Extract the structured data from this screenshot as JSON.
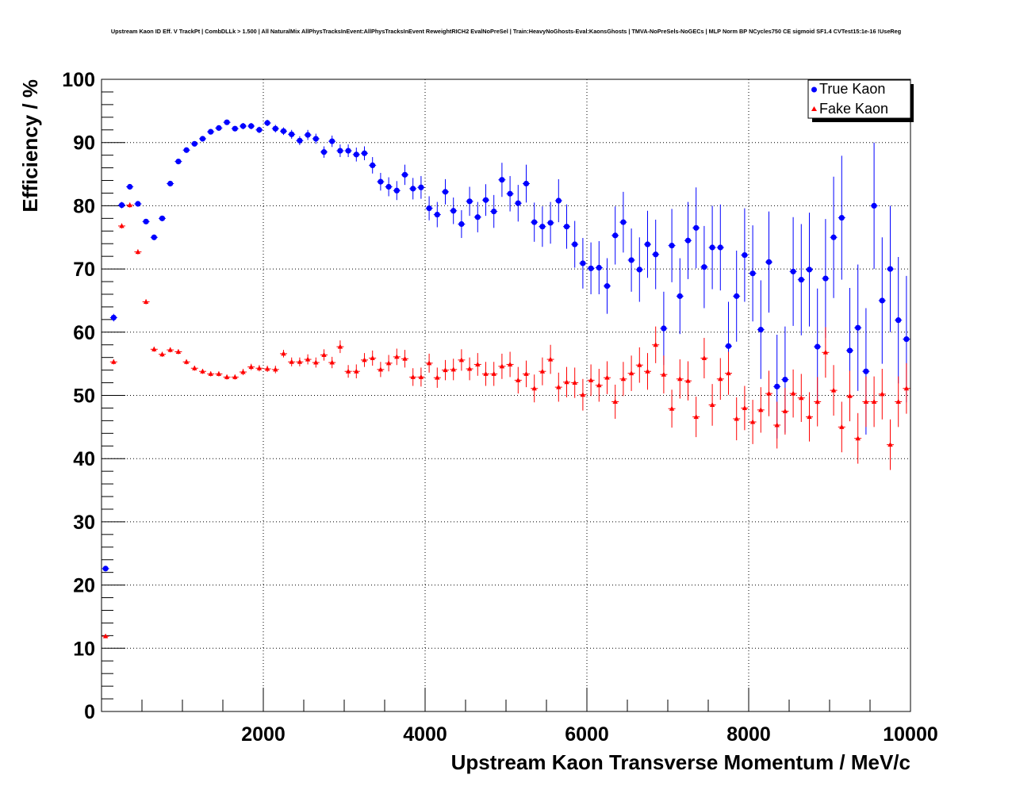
{
  "chart_data": {
    "type": "scatter",
    "title": "Upstream Kaon ID Eff. V TrackPt | CombDLLk > 1.500 | All NaturalMix AllPhysTracksInEvent:AllPhysTracksInEvent ReweightRICH2 EvalNoPreSel | Train:HeavyNoGhosts-Eval:KaonsGhosts | TMVA-NoPreSels-NoGECs | MLP Norm BP NCycles750 CE sigmoid SF1.4 CVTest15:1e-16 !UseReg",
    "xlabel": "Upstream Kaon Transverse Momentum / MeV/c",
    "ylabel": "Efficiency / %",
    "xlim": [
      0,
      10000
    ],
    "ylim": [
      0,
      100
    ],
    "x_ticks": [
      "2000",
      "4000",
      "6000",
      "8000",
      "10000"
    ],
    "y_ticks": [
      "0",
      "10",
      "20",
      "30",
      "40",
      "50",
      "60",
      "70",
      "80",
      "90",
      "100"
    ],
    "grid": true,
    "legend_position": "top-right",
    "series": [
      {
        "name": "True Kaon",
        "color": "#0000ff",
        "marker": "circle",
        "x": [
          50,
          150,
          250,
          350,
          450,
          550,
          650,
          750,
          850,
          950,
          1050,
          1150,
          1250,
          1350,
          1450,
          1550,
          1650,
          1750,
          1850,
          1950,
          2050,
          2150,
          2250,
          2350,
          2450,
          2550,
          2650,
          2750,
          2850,
          2950,
          3050,
          3150,
          3250,
          3350,
          3450,
          3550,
          3650,
          3750,
          3850,
          3950,
          4050,
          4150,
          4250,
          4350,
          4450,
          4550,
          4650,
          4750,
          4850,
          4950,
          5050,
          5150,
          5250,
          5350,
          5450,
          5550,
          5650,
          5750,
          5850,
          5950,
          6050,
          6150,
          6250,
          6350,
          6450,
          6550,
          6650,
          6750,
          6850,
          6950,
          7050,
          7150,
          7250,
          7350,
          7450,
          7550,
          7650,
          7750,
          7850,
          7950,
          8050,
          8150,
          8250,
          8350,
          8450,
          8550,
          8650,
          8750,
          8850,
          8950,
          9050,
          9150,
          9250,
          9350,
          9450,
          9550,
          9650,
          9750,
          9850,
          9950
        ],
        "y": [
          22.6,
          62.3,
          80.1,
          83.0,
          80.3,
          77.5,
          75.0,
          78.0,
          83.5,
          87.0,
          88.8,
          89.8,
          90.6,
          91.7,
          92.3,
          93.2,
          92.2,
          92.6,
          92.6,
          92.0,
          93.1,
          92.2,
          91.8,
          91.3,
          90.3,
          91.2,
          90.6,
          88.5,
          90.2,
          88.7,
          88.7,
          88.1,
          88.3,
          86.4,
          83.8,
          83.0,
          82.4,
          84.9,
          82.7,
          82.9,
          79.6,
          78.6,
          82.2,
          79.2,
          77.1,
          80.7,
          78.2,
          80.9,
          79.1,
          84.1,
          81.9,
          80.4,
          83.5,
          77.4,
          76.7,
          77.3,
          80.8,
          76.7,
          73.9,
          70.9,
          70.1,
          70.2,
          67.3,
          75.3,
          77.4,
          71.4,
          69.9,
          73.9,
          72.3,
          60.6,
          73.7,
          65.7,
          74.5,
          76.5,
          70.3,
          73.4,
          73.4,
          57.8,
          65.7,
          72.2,
          69.3,
          60.4,
          71.1,
          51.4,
          52.5,
          69.6,
          68.3,
          69.9,
          57.7,
          68.5,
          75.0,
          78.1,
          57.1,
          60.7,
          53.8,
          80.0,
          65.0,
          70.0,
          61.9,
          58.9
        ],
        "y_err": [
          0.4,
          0.6,
          0.5,
          0.4,
          0.4,
          0.4,
          0.4,
          0.4,
          0.4,
          0.4,
          0.4,
          0.4,
          0.4,
          0.4,
          0.4,
          0.4,
          0.4,
          0.5,
          0.5,
          0.5,
          0.5,
          0.6,
          0.6,
          0.7,
          0.7,
          0.8,
          0.8,
          0.9,
          0.9,
          1.0,
          1.0,
          1.1,
          1.1,
          1.3,
          1.4,
          1.5,
          1.5,
          1.6,
          1.7,
          1.8,
          1.9,
          2.0,
          2.0,
          2.1,
          2.2,
          2.3,
          2.4,
          2.5,
          2.6,
          2.7,
          2.8,
          2.9,
          3.0,
          3.1,
          3.2,
          3.3,
          3.4,
          3.5,
          3.7,
          4.0,
          4.1,
          4.2,
          4.4,
          4.6,
          4.8,
          5.0,
          5.1,
          5.3,
          5.5,
          5.8,
          5.8,
          6.0,
          6.1,
          6.4,
          6.5,
          6.6,
          6.8,
          7.0,
          7.2,
          7.4,
          7.6,
          7.8,
          8.0,
          8.2,
          8.4,
          8.6,
          8.8,
          9.0,
          9.2,
          9.4,
          9.6,
          9.8,
          9.9,
          10.0,
          10.0,
          10.0,
          10.0,
          10.0,
          10.0,
          10.0
        ]
      },
      {
        "name": "Fake Kaon",
        "color": "#ff0000",
        "marker": "triangle",
        "x": [
          50,
          150,
          250,
          350,
          450,
          550,
          650,
          750,
          850,
          950,
          1050,
          1150,
          1250,
          1350,
          1450,
          1550,
          1650,
          1750,
          1850,
          1950,
          2050,
          2150,
          2250,
          2350,
          2450,
          2550,
          2650,
          2750,
          2850,
          2950,
          3050,
          3150,
          3250,
          3350,
          3450,
          3550,
          3650,
          3750,
          3850,
          3950,
          4050,
          4150,
          4250,
          4350,
          4450,
          4550,
          4650,
          4750,
          4850,
          4950,
          5050,
          5150,
          5250,
          5350,
          5450,
          5550,
          5650,
          5750,
          5850,
          5950,
          6050,
          6150,
          6250,
          6350,
          6450,
          6550,
          6650,
          6750,
          6850,
          6950,
          7050,
          7150,
          7250,
          7350,
          7450,
          7550,
          7650,
          7750,
          7850,
          7950,
          8050,
          8150,
          8250,
          8350,
          8450,
          8550,
          8650,
          8750,
          8850,
          8950,
          9050,
          9150,
          9250,
          9350,
          9450,
          9550,
          9650,
          9750,
          9850,
          9950
        ],
        "y": [
          11.9,
          55.3,
          76.8,
          80.1,
          72.7,
          64.8,
          57.3,
          56.5,
          57.2,
          56.9,
          55.3,
          54.3,
          53.8,
          53.4,
          53.4,
          52.9,
          52.9,
          53.7,
          54.5,
          54.3,
          54.2,
          54.1,
          56.6,
          55.3,
          55.3,
          55.7,
          55.2,
          56.4,
          55.2,
          57.7,
          53.8,
          53.8,
          55.6,
          55.9,
          54.1,
          55.1,
          56.1,
          55.8,
          52.9,
          52.9,
          55.1,
          52.8,
          54.0,
          54.1,
          55.6,
          54.2,
          54.9,
          53.4,
          53.4,
          54.6,
          54.9,
          52.4,
          53.4,
          51.1,
          53.8,
          55.7,
          51.3,
          52.1,
          52.0,
          50.1,
          52.4,
          51.6,
          52.8,
          49.0,
          52.6,
          53.5,
          54.8,
          53.8,
          58.0,
          53.3,
          47.9,
          52.6,
          52.3,
          46.6,
          55.9,
          48.5,
          52.6,
          53.5,
          46.3,
          48.0,
          45.8,
          47.7,
          50.3,
          45.3,
          47.5,
          50.3,
          49.6,
          46.6,
          49.0,
          56.8,
          50.8,
          45.0,
          49.9,
          43.2,
          49.0,
          49.0,
          50.2,
          42.2,
          49.0,
          51.1
        ],
        "y_err": [
          0.3,
          0.4,
          0.4,
          0.4,
          0.4,
          0.4,
          0.4,
          0.4,
          0.4,
          0.4,
          0.4,
          0.4,
          0.4,
          0.4,
          0.4,
          0.4,
          0.4,
          0.5,
          0.5,
          0.5,
          0.5,
          0.6,
          0.6,
          0.7,
          0.7,
          0.8,
          0.8,
          0.9,
          0.9,
          1.0,
          1.0,
          1.1,
          1.1,
          1.2,
          1.2,
          1.3,
          1.3,
          1.4,
          1.4,
          1.5,
          1.5,
          1.6,
          1.6,
          1.7,
          1.7,
          1.8,
          1.8,
          1.9,
          1.9,
          2.0,
          2.0,
          2.1,
          2.1,
          2.2,
          2.2,
          2.3,
          2.3,
          2.4,
          2.4,
          2.5,
          2.5,
          2.6,
          2.6,
          2.7,
          2.7,
          2.8,
          2.8,
          2.9,
          2.9,
          3.0,
          3.0,
          3.1,
          3.1,
          3.2,
          3.2,
          3.3,
          3.3,
          3.4,
          3.4,
          3.5,
          3.5,
          3.6,
          3.6,
          3.7,
          3.7,
          3.8,
          3.8,
          3.9,
          3.9,
          4.0,
          4.0,
          4.0,
          4.0,
          4.0,
          4.0,
          4.0,
          4.0,
          4.0,
          4.0,
          4.0
        ]
      }
    ]
  }
}
